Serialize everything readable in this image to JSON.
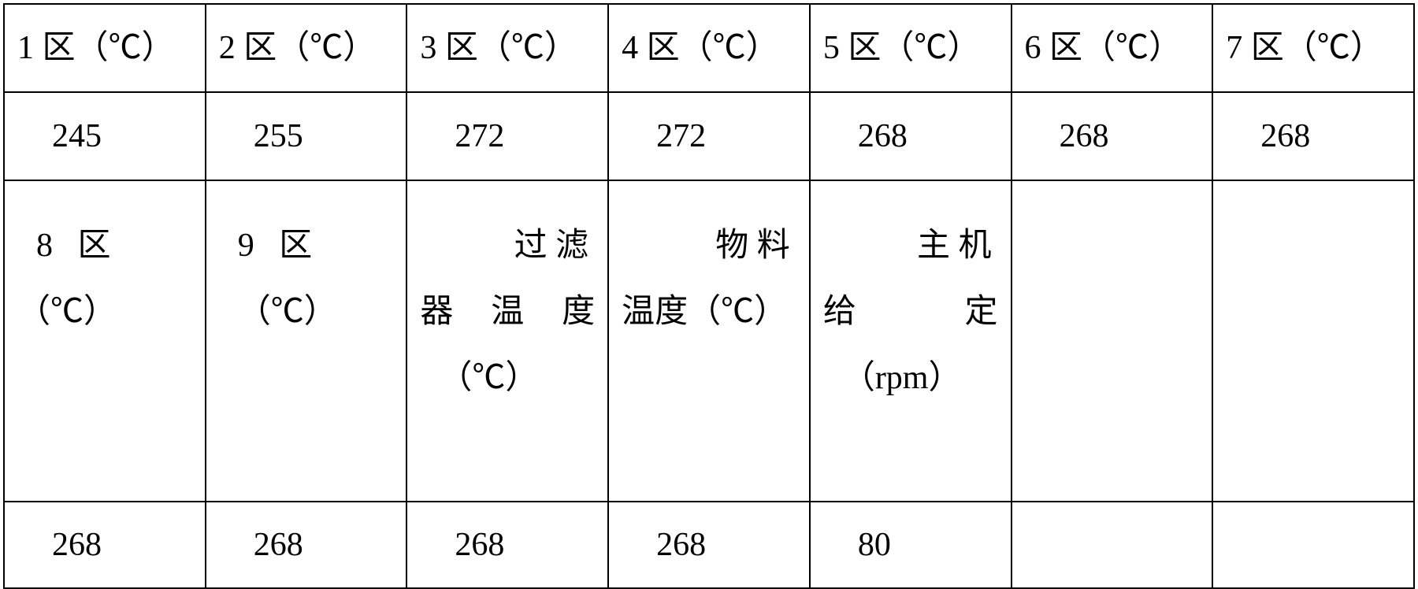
{
  "table": {
    "columns": 7,
    "border_color": "#000000",
    "background_color": "#ffffff",
    "text_color": "#000000",
    "font_family": "SimSun / Times New Roman",
    "font_size_pt": 32,
    "row1": {
      "c1": "1 区（℃）",
      "c2": "2 区（℃）",
      "c3": "3 区（℃）",
      "c4": "4 区（℃）",
      "c5": "5 区（℃）",
      "c6": "6 区（℃）",
      "c7": "7 区（℃）"
    },
    "row2": {
      "c1": "245",
      "c2": "255",
      "c3": "272",
      "c4": "272",
      "c5": "268",
      "c6": "268",
      "c7": "268"
    },
    "row3": {
      "c1": {
        "l1": "8   区",
        "l2": "（℃）"
      },
      "c2": {
        "l1": "9   区",
        "l2": "（℃）"
      },
      "c3": {
        "l1": "过 滤",
        "l2": "器  温  度",
        "l3": "（℃）"
      },
      "c4": {
        "l1": "物 料",
        "l2": "温度（℃）"
      },
      "c5": {
        "l1": "主 机",
        "l2": "给       定",
        "l3": "（rpm）"
      },
      "c6": "",
      "c7": ""
    },
    "row4": {
      "c1": "268",
      "c2": "268",
      "c3": "268",
      "c4": "268",
      "c5": "80",
      "c6": "",
      "c7": ""
    }
  }
}
